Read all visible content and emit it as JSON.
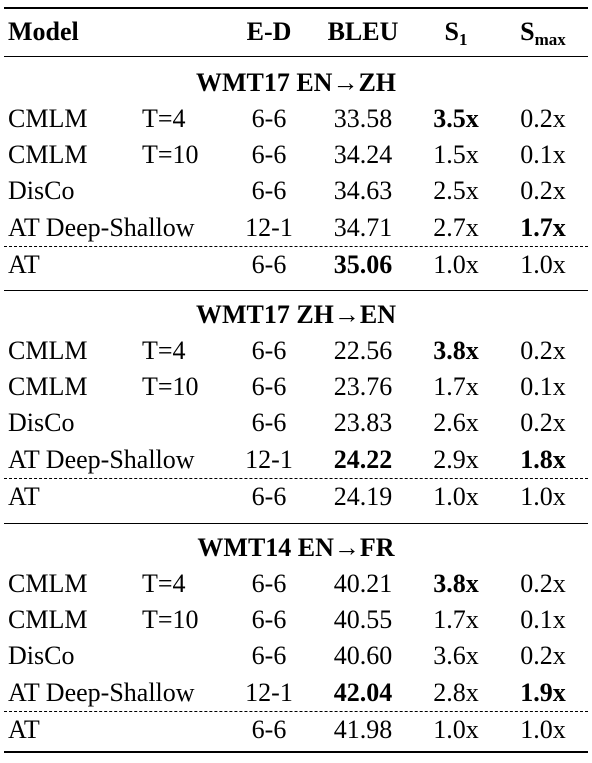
{
  "header": {
    "model": "Model",
    "ed": "E-D",
    "bleu": "BLEU",
    "s1_main": "S",
    "s1_sub": "1",
    "smax_main": "S",
    "smax_sub": "max"
  },
  "sections": [
    {
      "title": "WMT17 EN→ZH",
      "rows": [
        {
          "model": "CMLM",
          "t": "T=4",
          "ed": "6-6",
          "bleu": "33.58",
          "s1": "3.5x",
          "smax": "0.2x",
          "bold": [
            "s1"
          ]
        },
        {
          "model": "CMLM",
          "t": "T=10",
          "ed": "6-6",
          "bleu": "34.24",
          "s1": "1.5x",
          "smax": "0.1x",
          "bold": []
        },
        {
          "model": "DisCo",
          "t": "",
          "ed": "6-6",
          "bleu": "34.63",
          "s1": "2.5x",
          "smax": "0.2x",
          "bold": []
        },
        {
          "model": "AT Deep-Shallow",
          "t": "",
          "ed": "12-1",
          "bleu": "34.71",
          "s1": "2.7x",
          "smax": "1.7x",
          "bold": [
            "smax"
          ]
        },
        {
          "model": "AT",
          "t": "",
          "ed": "6-6",
          "bleu": "35.06",
          "s1": "1.0x",
          "smax": "1.0x",
          "bold": [
            "bleu"
          ]
        }
      ]
    },
    {
      "title": "WMT17 ZH→EN",
      "rows": [
        {
          "model": "CMLM",
          "t": "T=4",
          "ed": "6-6",
          "bleu": "22.56",
          "s1": "3.8x",
          "smax": "0.2x",
          "bold": [
            "s1"
          ]
        },
        {
          "model": "CMLM",
          "t": "T=10",
          "ed": "6-6",
          "bleu": "23.76",
          "s1": "1.7x",
          "smax": "0.1x",
          "bold": []
        },
        {
          "model": "DisCo",
          "t": "",
          "ed": "6-6",
          "bleu": "23.83",
          "s1": "2.6x",
          "smax": "0.2x",
          "bold": []
        },
        {
          "model": "AT Deep-Shallow",
          "t": "",
          "ed": "12-1",
          "bleu": "24.22",
          "s1": "2.9x",
          "smax": "1.8x",
          "bold": [
            "bleu",
            "smax"
          ]
        },
        {
          "model": "AT",
          "t": "",
          "ed": "6-6",
          "bleu": "24.19",
          "s1": "1.0x",
          "smax": "1.0x",
          "bold": []
        }
      ]
    },
    {
      "title": "WMT14 EN→FR",
      "rows": [
        {
          "model": "CMLM",
          "t": "T=4",
          "ed": "6-6",
          "bleu": "40.21",
          "s1": "3.8x",
          "smax": "0.2x",
          "bold": [
            "s1"
          ]
        },
        {
          "model": "CMLM",
          "t": "T=10",
          "ed": "6-6",
          "bleu": "40.55",
          "s1": "1.7x",
          "smax": "0.1x",
          "bold": []
        },
        {
          "model": "DisCo",
          "t": "",
          "ed": "6-6",
          "bleu": "40.60",
          "s1": "3.6x",
          "smax": "0.2x",
          "bold": []
        },
        {
          "model": "AT Deep-Shallow",
          "t": "",
          "ed": "12-1",
          "bleu": "42.04",
          "s1": "2.8x",
          "smax": "1.9x",
          "bold": [
            "bleu",
            "smax"
          ]
        },
        {
          "model": "AT",
          "t": "",
          "ed": "6-6",
          "bleu": "41.98",
          "s1": "1.0x",
          "smax": "1.0x",
          "bold": []
        }
      ]
    }
  ]
}
